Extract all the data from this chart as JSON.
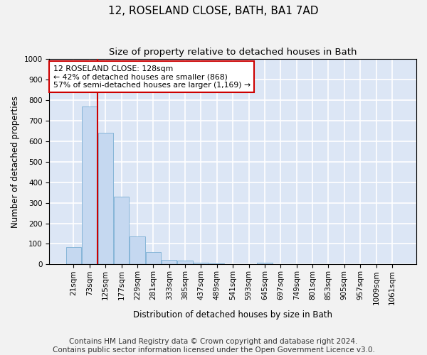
{
  "title": "12, ROSELAND CLOSE, BATH, BA1 7AD",
  "subtitle": "Size of property relative to detached houses in Bath",
  "xlabel": "Distribution of detached houses by size in Bath",
  "ylabel": "Number of detached properties",
  "bar_color": "#c5d8f0",
  "bar_edge_color": "#7aafd4",
  "background_color": "#dce6f5",
  "grid_color": "#ffffff",
  "annotation_text": "12 ROSELAND CLOSE: 128sqm\n← 42% of detached houses are smaller (868)\n57% of semi-detached houses are larger (1,169) →",
  "vline_color": "#cc0000",
  "ylim": [
    0,
    1000
  ],
  "yticks": [
    0,
    100,
    200,
    300,
    400,
    500,
    600,
    700,
    800,
    900,
    1000
  ],
  "categories": [
    "21sqm",
    "73sqm",
    "125sqm",
    "177sqm",
    "229sqm",
    "281sqm",
    "333sqm",
    "385sqm",
    "437sqm",
    "489sqm",
    "541sqm",
    "593sqm",
    "645sqm",
    "697sqm",
    "749sqm",
    "801sqm",
    "853sqm",
    "905sqm",
    "957sqm",
    "1009sqm",
    "1061sqm"
  ],
  "values": [
    85,
    770,
    640,
    330,
    135,
    60,
    22,
    17,
    10,
    6,
    0,
    0,
    8,
    0,
    0,
    0,
    0,
    0,
    0,
    0,
    0
  ],
  "footer_line1": "Contains HM Land Registry data © Crown copyright and database right 2024.",
  "footer_line2": "Contains public sector information licensed under the Open Government Licence v3.0.",
  "annot_box_color": "#ffffff",
  "annot_box_edge_color": "#cc0000",
  "fig_background": "#f2f2f2",
  "title_fontsize": 11,
  "subtitle_fontsize": 9.5,
  "axis_fontsize": 8.5,
  "tick_fontsize": 7.5,
  "footer_fontsize": 7.5
}
